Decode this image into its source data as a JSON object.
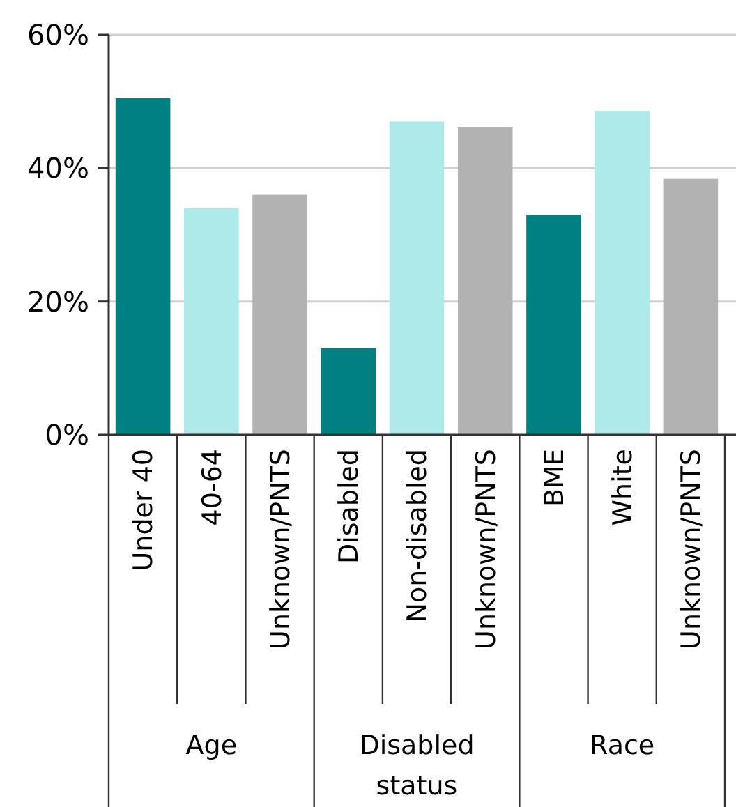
{
  "chart_data": {
    "type": "bar",
    "categories": [
      "Under 40",
      "40-64",
      "Unknown/PNTS",
      "Disabled",
      "Non-disabled",
      "Unknown/PNTS",
      "BME",
      "White",
      "Unknown/PNTS"
    ],
    "values": [
      50.5,
      34,
      36,
      13,
      47,
      46.2,
      33,
      48.6,
      38.4
    ],
    "colors": [
      "#008080",
      "#afeaea",
      "#b2b2b2",
      "#008080",
      "#afeaea",
      "#b2b2b2",
      "#008080",
      "#afeaea",
      "#b2b2b2"
    ],
    "ylim": [
      0,
      60
    ],
    "yticks": [
      {
        "value": 0,
        "label": "0%"
      },
      {
        "value": 20,
        "label": "20%"
      },
      {
        "value": 40,
        "label": "40%"
      },
      {
        "value": 60,
        "label": "60%"
      }
    ],
    "grid": "y",
    "annotations": [
      "Age",
      "Disabled status",
      "Race"
    ]
  }
}
